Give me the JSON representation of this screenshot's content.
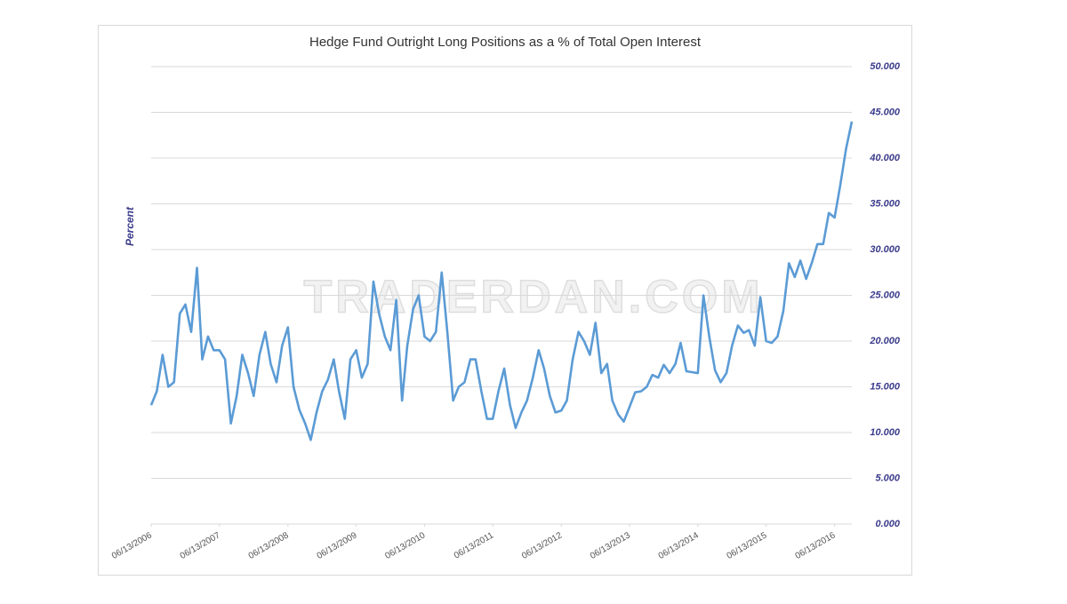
{
  "chart_data": {
    "type": "line",
    "title": "Hedge Fund Outright Long Positions as a % of Total Open Interest",
    "y_label": "Percent",
    "watermark": "TRADERDAN.COM",
    "grid": true,
    "y_axis_side": "right",
    "xlim": [
      "06/13/2006",
      "09/13/2016"
    ],
    "xticks": [
      "06/13/2006",
      "06/13/2007",
      "06/13/2008",
      "06/13/2009",
      "06/13/2010",
      "06/13/2011",
      "06/13/2012",
      "06/13/2013",
      "06/13/2014",
      "06/13/2015",
      "06/13/2016"
    ],
    "ylim": [
      0,
      50
    ],
    "yticks": [
      {
        "value": 0,
        "label": "0.000"
      },
      {
        "value": 5,
        "label": "5.000"
      },
      {
        "value": 10,
        "label": "10.000"
      },
      {
        "value": 15,
        "label": "15.000"
      },
      {
        "value": 20,
        "label": "20.000"
      },
      {
        "value": 25,
        "label": "25.000"
      },
      {
        "value": 30,
        "label": "30.000"
      },
      {
        "value": 35,
        "label": "35.000"
      },
      {
        "value": 40,
        "label": "40.000"
      },
      {
        "value": 45,
        "label": "45.000"
      },
      {
        "value": 50,
        "label": "50.000"
      }
    ],
    "x": [
      "06/13/2006",
      "07/13/2006",
      "08/13/2006",
      "09/13/2006",
      "10/13/2006",
      "11/13/2006",
      "12/13/2006",
      "01/13/2007",
      "02/13/2007",
      "03/13/2007",
      "04/13/2007",
      "05/13/2007",
      "06/13/2007",
      "07/13/2007",
      "08/13/2007",
      "09/13/2007",
      "10/13/2007",
      "11/13/2007",
      "12/13/2007",
      "01/13/2008",
      "02/13/2008",
      "03/13/2008",
      "04/13/2008",
      "05/13/2008",
      "06/13/2008",
      "07/13/2008",
      "08/13/2008",
      "09/13/2008",
      "10/13/2008",
      "11/13/2008",
      "12/13/2008",
      "01/13/2009",
      "02/13/2009",
      "03/13/2009",
      "04/13/2009",
      "05/13/2009",
      "06/13/2009",
      "07/13/2009",
      "08/13/2009",
      "09/13/2009",
      "10/13/2009",
      "11/13/2009",
      "12/13/2009",
      "01/13/2010",
      "02/13/2010",
      "03/13/2010",
      "04/13/2010",
      "05/13/2010",
      "06/13/2010",
      "07/13/2010",
      "08/13/2010",
      "09/13/2010",
      "10/13/2010",
      "11/13/2010",
      "12/13/2010",
      "01/13/2011",
      "02/13/2011",
      "03/13/2011",
      "04/13/2011",
      "05/13/2011",
      "06/13/2011",
      "07/13/2011",
      "08/13/2011",
      "09/13/2011",
      "10/13/2011",
      "11/13/2011",
      "12/13/2011",
      "01/13/2012",
      "02/13/2012",
      "03/13/2012",
      "04/13/2012",
      "05/13/2012",
      "06/13/2012",
      "07/13/2012",
      "08/13/2012",
      "09/13/2012",
      "10/13/2012",
      "11/13/2012",
      "12/13/2012",
      "01/13/2013",
      "02/13/2013",
      "03/13/2013",
      "04/13/2013",
      "05/13/2013",
      "06/13/2013",
      "07/13/2013",
      "08/13/2013",
      "09/13/2013",
      "10/13/2013",
      "11/13/2013",
      "12/13/2013",
      "01/13/2014",
      "02/13/2014",
      "03/13/2014",
      "04/13/2014",
      "05/13/2014",
      "06/13/2014",
      "07/13/2014",
      "08/13/2014",
      "09/13/2014",
      "10/13/2014",
      "11/13/2014",
      "12/13/2014",
      "01/13/2015",
      "02/13/2015",
      "03/13/2015",
      "04/13/2015",
      "05/13/2015",
      "06/13/2015",
      "07/13/2015",
      "08/13/2015",
      "09/13/2015",
      "10/13/2015",
      "11/13/2015",
      "12/13/2015",
      "01/13/2016",
      "02/13/2016",
      "03/13/2016",
      "04/13/2016",
      "05/13/2016",
      "06/13/2016",
      "07/13/2016",
      "08/13/2016",
      "09/13/2016"
    ],
    "series": [
      {
        "name": "Percent",
        "color": "#5b9bd5",
        "values": [
          13,
          14.5,
          18.5,
          15,
          15.5,
          23,
          24,
          21,
          28,
          18,
          20.5,
          19,
          19,
          18,
          11,
          14,
          18.5,
          16.5,
          14,
          18.5,
          21,
          17.5,
          15.5,
          19.5,
          21.5,
          15,
          12.5,
          11,
          9.2,
          12.2,
          14.5,
          15.8,
          18,
          14.5,
          11.5,
          18,
          19,
          16,
          17.5,
          26.5,
          23,
          20.5,
          19,
          24.5,
          13.5,
          19.5,
          23.5,
          25,
          20.5,
          20,
          21,
          27.5,
          21,
          13.5,
          15,
          15.5,
          18,
          18,
          14.5,
          11.5,
          11.5,
          14.5,
          17,
          13,
          10.5,
          12.2,
          13.5,
          16,
          19,
          17,
          14,
          12.2,
          12.4,
          13.5,
          18,
          21,
          20,
          18.5,
          22,
          16.5,
          17.5,
          13.5,
          12,
          11.2,
          12.8,
          14.4,
          14.5,
          15,
          16.3,
          16,
          17.4,
          16.5,
          17.5,
          19.8,
          16.7,
          16.6,
          16.5,
          25,
          20.5,
          16.8,
          15.5,
          16.5,
          19.5,
          21.7,
          20.9,
          21.2,
          19.5,
          24.8,
          20,
          19.8,
          20.5,
          23.3,
          28.5,
          27,
          28.8,
          26.8,
          28.6,
          30.6,
          30.6,
          34,
          33.5,
          37,
          41,
          44
        ]
      }
    ]
  }
}
